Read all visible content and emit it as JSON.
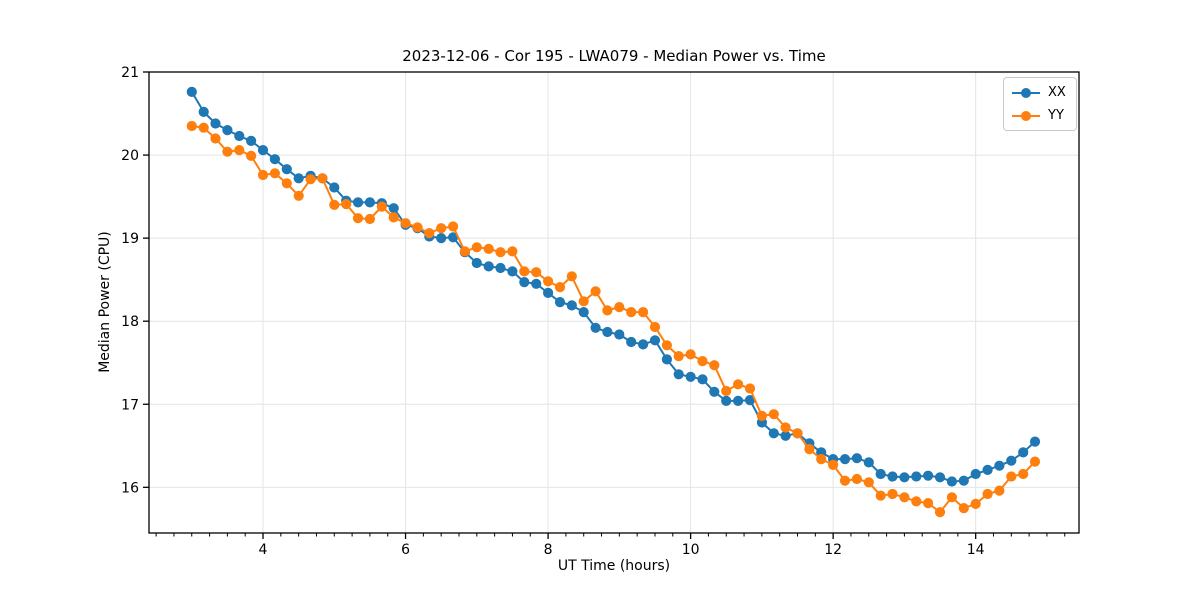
{
  "chart_data": {
    "type": "line",
    "title": "2023-12-06 - Cor 195 - LWA079 - Median Power vs. Time",
    "xlabel": "UT Time (hours)",
    "ylabel": "Median Power (CPU)",
    "xlim": [
      2.4,
      15.45
    ],
    "ylim": [
      15.45,
      21.0
    ],
    "x_major_ticks": [
      4,
      6,
      8,
      10,
      12,
      14
    ],
    "x_tick_labels": [
      "4",
      "6",
      "8",
      "10",
      "12",
      "14"
    ],
    "x_minor_tick_step": 0.25,
    "y_major_ticks": [
      16,
      17,
      18,
      19,
      20,
      21
    ],
    "y_tick_labels": [
      "16",
      "17",
      "18",
      "19",
      "20",
      "21"
    ],
    "grid": true,
    "grid_color": "#e4e4e4",
    "legend": {
      "position": "upper right",
      "entries": [
        "XX",
        "YY"
      ]
    },
    "x": [
      3.0,
      3.167,
      3.333,
      3.5,
      3.667,
      3.833,
      4.0,
      4.167,
      4.333,
      4.5,
      4.667,
      4.833,
      5.0,
      5.167,
      5.333,
      5.5,
      5.667,
      5.833,
      6.0,
      6.167,
      6.333,
      6.5,
      6.667,
      6.833,
      7.0,
      7.167,
      7.333,
      7.5,
      7.667,
      7.833,
      8.0,
      8.167,
      8.333,
      8.5,
      8.667,
      8.833,
      9.0,
      9.167,
      9.333,
      9.5,
      9.667,
      9.833,
      10.0,
      10.167,
      10.333,
      10.5,
      10.667,
      10.833,
      11.0,
      11.167,
      11.333,
      11.5,
      11.667,
      11.833,
      12.0,
      12.167,
      12.333,
      12.5,
      12.667,
      12.833,
      13.0,
      13.167,
      13.333,
      13.5,
      13.667,
      13.833,
      14.0,
      14.167,
      14.333,
      14.5,
      14.667,
      14.833
    ],
    "series": [
      {
        "name": "XX",
        "color": "#1f77b4",
        "marker": "circle",
        "values": [
          20.76,
          20.52,
          20.38,
          20.3,
          20.23,
          20.17,
          20.06,
          19.95,
          19.83,
          19.72,
          19.75,
          19.72,
          19.61,
          19.45,
          19.43,
          19.43,
          19.42,
          19.36,
          19.16,
          19.12,
          19.02,
          19.0,
          19.01,
          18.83,
          18.7,
          18.66,
          18.64,
          18.6,
          18.47,
          18.45,
          18.34,
          18.23,
          18.19,
          18.11,
          17.92,
          17.87,
          17.84,
          17.75,
          17.72,
          17.77,
          17.54,
          17.36,
          17.33,
          17.3,
          17.15,
          17.04,
          17.04,
          17.05,
          16.78,
          16.65,
          16.62,
          16.65,
          16.53,
          16.42,
          16.34,
          16.34,
          16.35,
          16.3,
          16.16,
          16.13,
          16.12,
          16.13,
          16.14,
          16.12,
          16.07,
          16.08,
          16.16,
          16.21,
          16.26,
          16.32,
          16.42,
          16.55
        ]
      },
      {
        "name": "YY",
        "color": "#ff7f0e",
        "marker": "circle",
        "values": [
          20.35,
          20.33,
          20.2,
          20.04,
          20.06,
          19.99,
          19.76,
          19.78,
          19.66,
          19.51,
          19.71,
          19.72,
          19.4,
          19.41,
          19.24,
          19.23,
          19.38,
          19.25,
          19.18,
          19.13,
          19.06,
          19.12,
          19.14,
          18.84,
          18.89,
          18.87,
          18.83,
          18.84,
          18.6,
          18.59,
          18.48,
          18.41,
          18.54,
          18.24,
          18.36,
          18.13,
          18.17,
          18.11,
          18.11,
          17.93,
          17.71,
          17.58,
          17.6,
          17.52,
          17.47,
          17.16,
          17.24,
          17.19,
          16.86,
          16.88,
          16.72,
          16.65,
          16.46,
          16.34,
          16.27,
          16.08,
          16.1,
          16.06,
          15.9,
          15.92,
          15.88,
          15.83,
          15.81,
          15.7,
          15.88,
          15.75,
          15.8,
          15.92,
          15.96,
          16.13,
          16.16,
          16.31
        ]
      }
    ]
  }
}
